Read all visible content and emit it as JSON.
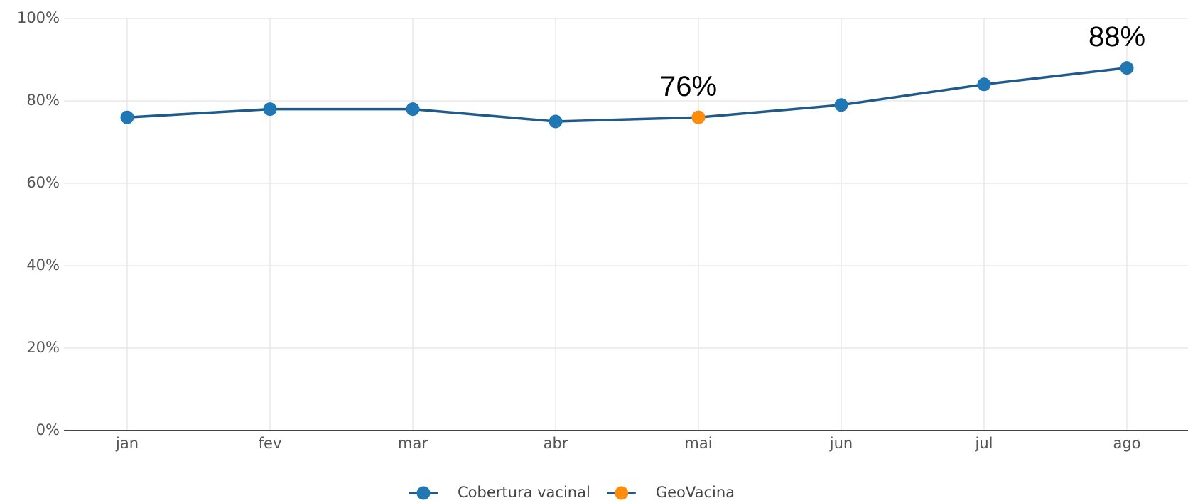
{
  "chart_data": {
    "type": "line",
    "categories": [
      "jan",
      "fev",
      "mar",
      "abr",
      "mai",
      "jun",
      "jul",
      "ago"
    ],
    "series": [
      {
        "name": "Cobertura vacinal",
        "color": "#1f77b4",
        "line_color": "#1f5a8a",
        "values": [
          76,
          78,
          78,
          75,
          76,
          79,
          84,
          88
        ],
        "value_labels": [
          null,
          null,
          null,
          null,
          null,
          null,
          null,
          "88%"
        ]
      },
      {
        "name": "GeoVacina",
        "color": "#ff8c0a",
        "values": [
          null,
          null,
          null,
          null,
          76,
          null,
          null,
          null
        ],
        "value_labels": [
          null,
          null,
          null,
          null,
          "76%",
          null,
          null,
          null
        ]
      }
    ],
    "ylim": [
      0,
      100
    ],
    "yticks": [
      {
        "value": 0,
        "label": "0%"
      },
      {
        "value": 20,
        "label": "20%"
      },
      {
        "value": 40,
        "label": "40%"
      },
      {
        "value": 60,
        "label": "60%"
      },
      {
        "value": 80,
        "label": "80%"
      },
      {
        "value": 100,
        "label": "100%"
      }
    ],
    "grid": true
  }
}
